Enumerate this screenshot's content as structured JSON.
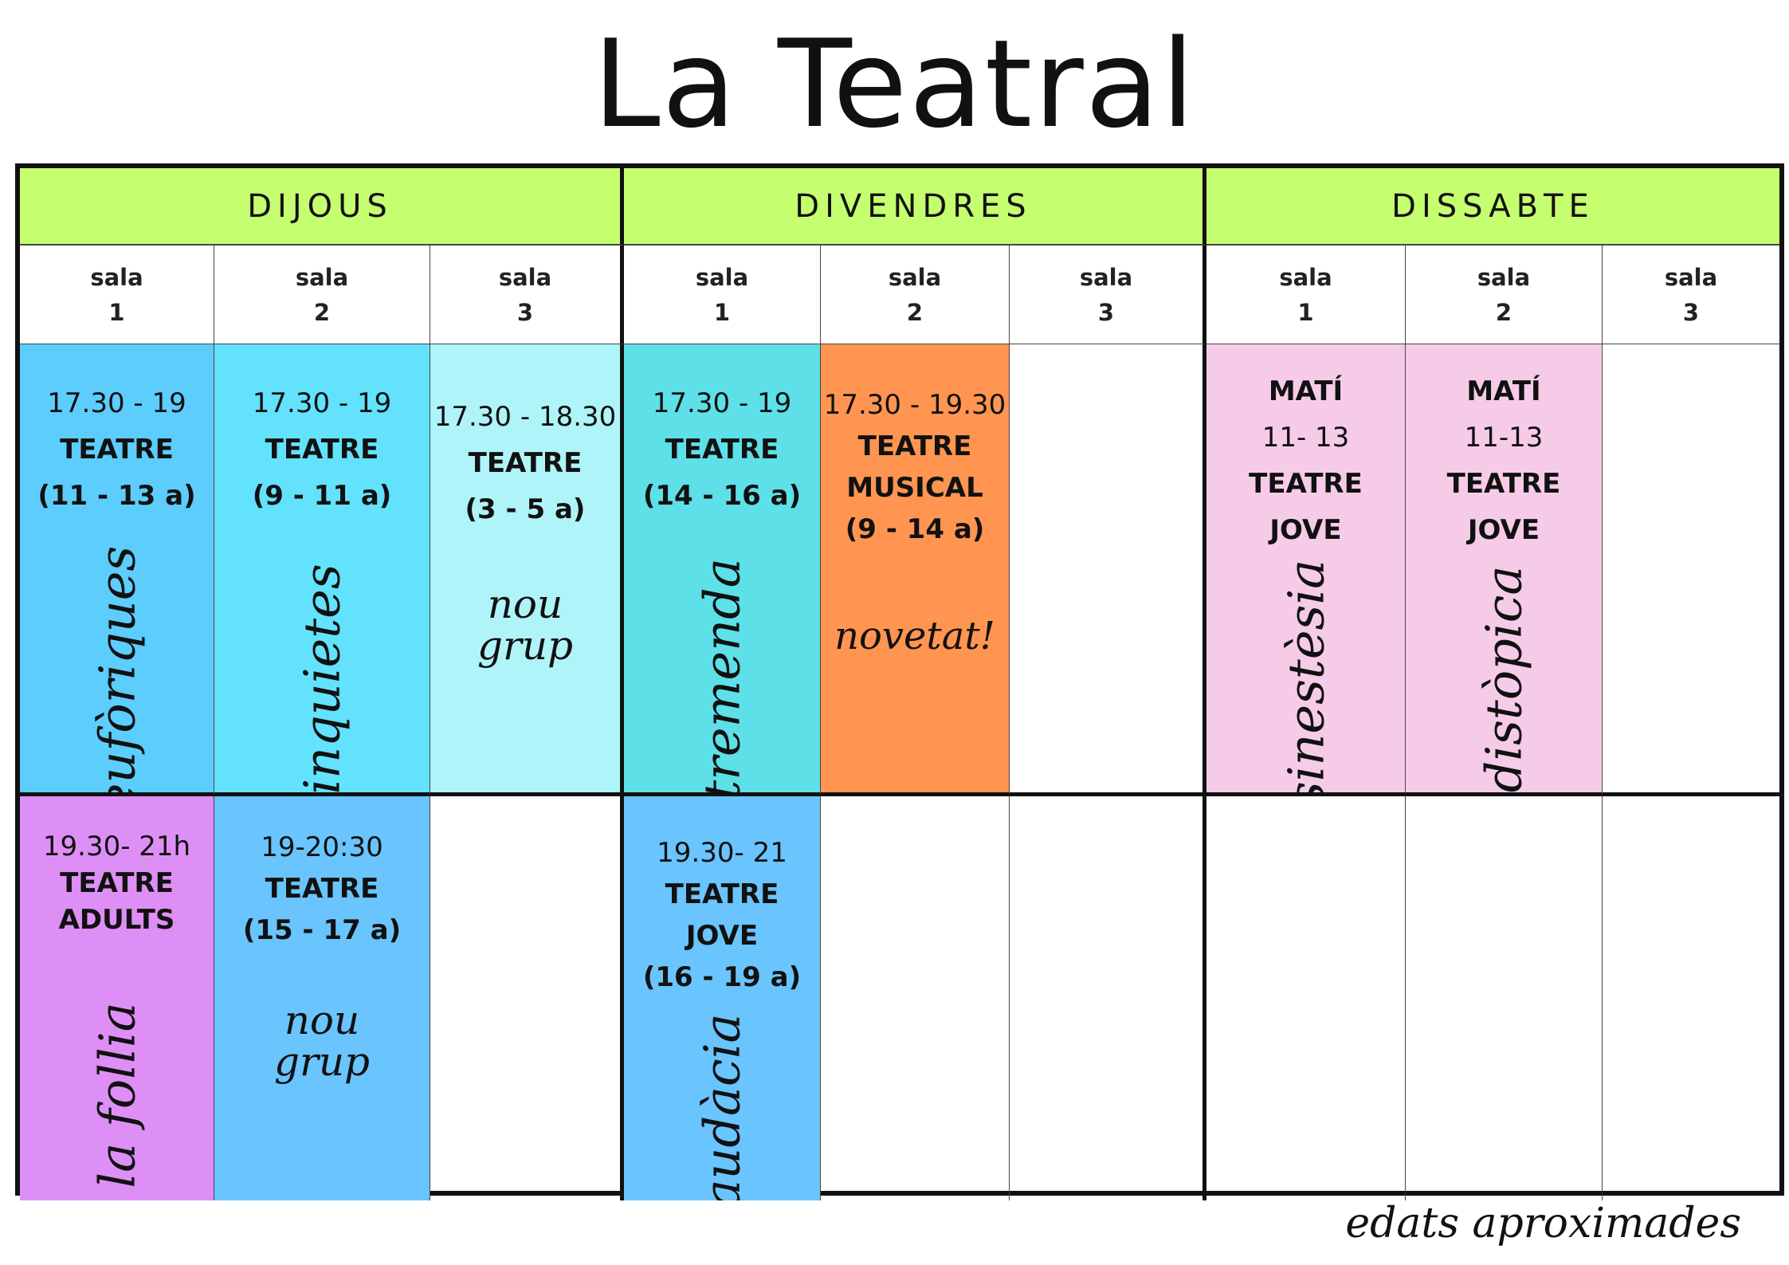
{
  "title": "La Teatral",
  "days": [
    "DIJOUS",
    "DIVENDRES",
    "DISSABTE"
  ],
  "sala_label": "sala",
  "sala_numbers": [
    "1",
    "2",
    "3"
  ],
  "slots": {
    "dijous_s1_early": {
      "time": "17.30 - 19",
      "line1": "TEATRE",
      "line2": "(11 - 13 a)",
      "group": "eufòriques"
    },
    "dijous_s2_early": {
      "time": "17.30 - 19",
      "line1": "TEATRE",
      "line2": "(9 - 11 a)",
      "group": "inquietes"
    },
    "dijous_s3_early": {
      "time": "17.30 - 18.30",
      "line1": "TEATRE",
      "line2": "(3 - 5 a)",
      "group_a": "nou",
      "group_b": "grup"
    },
    "divendres_s1_early": {
      "time": "17.30 - 19",
      "line1": "TEATRE",
      "line2": "(14 - 16 a)",
      "group": "tremenda"
    },
    "divendres_s2_early": {
      "time": "17.30 - 19.30",
      "line1": "TEATRE",
      "line2": "MUSICAL",
      "line3": "(9 - 14 a)",
      "group": "novetat!"
    },
    "dissabte_s1_early": {
      "label": "MATÍ",
      "time": "11- 13",
      "line1": "TEATRE",
      "line2": "JOVE",
      "group": "sinestèsia"
    },
    "dissabte_s2_early": {
      "label": "MATÍ",
      "time": "11-13",
      "line1": "TEATRE",
      "line2": "JOVE",
      "group": "distòpica"
    },
    "dijous_s1_late": {
      "time": "19.30- 21h",
      "line1": "TEATRE",
      "line2": "ADULTS",
      "group": "la follia"
    },
    "dijous_s2_late": {
      "time": "19-20:30",
      "line1": "TEATRE",
      "line2": "(15 - 17 a)",
      "group_a": "nou",
      "group_b": "grup"
    },
    "divendres_s1_late": {
      "time": "19.30- 21",
      "line1": "TEATRE",
      "line2": "JOVE",
      "line3": "(16 - 19 a)",
      "group": "audàcia"
    }
  },
  "footnote": "edats aproximades",
  "colors": {
    "header": "#c5ff6f",
    "blue": "#5ccdfd",
    "cyan": "#62e2fc",
    "light_cyan": "#aff4f8",
    "teal": "#5de0e8",
    "orange": "#ff9550",
    "pink": "#f6cbe8",
    "purple": "#de8ff5",
    "sky_blue": "#6ac4fd"
  }
}
